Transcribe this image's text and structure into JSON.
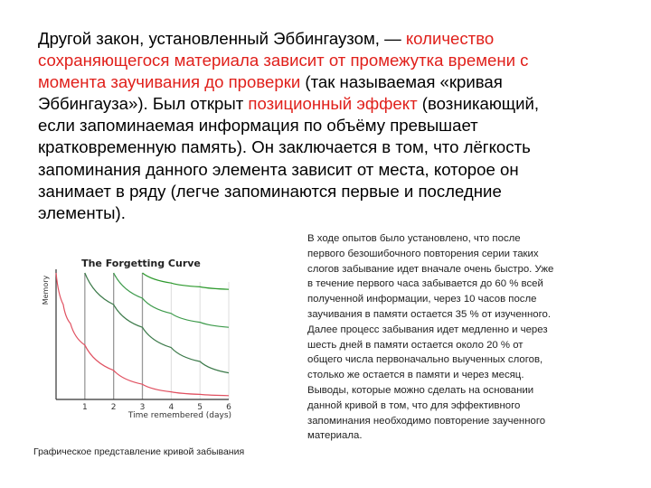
{
  "main_text": {
    "lines": [
      [
        {
          "t": "Другой закон, установленный Эббингаузом, — ",
          "red": false
        },
        {
          "t": "количество",
          "red": true
        }
      ],
      [
        {
          "t": "сохраняющегося материала зависит от промежутка времени с",
          "red": true
        }
      ],
      [
        {
          "t": "момента заучивания до проверки",
          "red": true
        },
        {
          "t": " (так называемая «кривая",
          "red": false
        }
      ],
      [
        {
          "t": "Эббингауза»). Был открыт ",
          "red": false
        },
        {
          "t": "позиционный эффект",
          "red": true
        },
        {
          "t": " (возникающий,",
          "red": false
        }
      ],
      [
        {
          "t": "если запоминаемая информация по объёму превышает",
          "red": false
        }
      ],
      [
        {
          "t": "кратковременную память). Он заключается в том, что лёгкость",
          "red": false
        }
      ],
      [
        {
          "t": "запоминания данного элемента зависит от места, которое он",
          "red": false
        }
      ],
      [
        {
          "t": "занимает в ряду (легче запоминаются первые и последние",
          "red": false
        }
      ],
      [
        {
          "t": "элементы).",
          "red": false
        }
      ]
    ],
    "highlight_color": "#e0201b"
  },
  "chart_data": {
    "type": "line",
    "title": "The Forgetting Curve",
    "xlabel": "Time remembered (days)",
    "ylabel": "Memory",
    "x_ticks": [
      "1",
      "2",
      "3",
      "4",
      "5",
      "6"
    ],
    "xlim": [
      0,
      6
    ],
    "ylim": [
      0,
      1
    ],
    "grid": "vertical",
    "series": [
      {
        "color": "#e05060",
        "x": [
          0,
          0.25,
          0.5,
          1,
          2,
          3,
          4,
          5,
          6
        ],
        "y": [
          1.0,
          0.75,
          0.6,
          0.43,
          0.23,
          0.12,
          0.06,
          0.04,
          0.03
        ]
      },
      {
        "color": "#3c7a4a",
        "x": [
          1,
          2,
          3,
          4,
          5,
          6
        ],
        "y": [
          1.0,
          0.75,
          0.57,
          0.41,
          0.3,
          0.21
        ]
      },
      {
        "color": "#3c9a4a",
        "x": [
          2,
          3,
          4,
          5,
          6
        ],
        "y": [
          1.0,
          0.8,
          0.68,
          0.61,
          0.57
        ]
      },
      {
        "color": "#2e9a2e",
        "x": [
          3,
          4,
          5,
          6
        ],
        "y": [
          1.0,
          0.92,
          0.89,
          0.87
        ]
      }
    ]
  },
  "caption": "Графическое представление кривой забывания",
  "side_text": [
    "В ходе опытов было установлено, что после",
    "первого безошибочного повторения серии таких",
    "слогов забывание идет вначале очень быстро. Уже",
    "в течение первого часа забывается до 60 % всей",
    "полученной информации, через 10 часов после",
    "заучивания в памяти остается 35 % от изученного.",
    "Далее процесс забывания идет медленно и через",
    "шесть дней в памяти остается около 20 % от",
    "общего числа первоначально выученных слогов,",
    "столько же остается в памяти и через месяц.",
    "Выводы, которые можно сделать на основании",
    "данной кривой в том, что для эффективного",
    "запоминания необходимо повторение заученного",
    "материала."
  ]
}
